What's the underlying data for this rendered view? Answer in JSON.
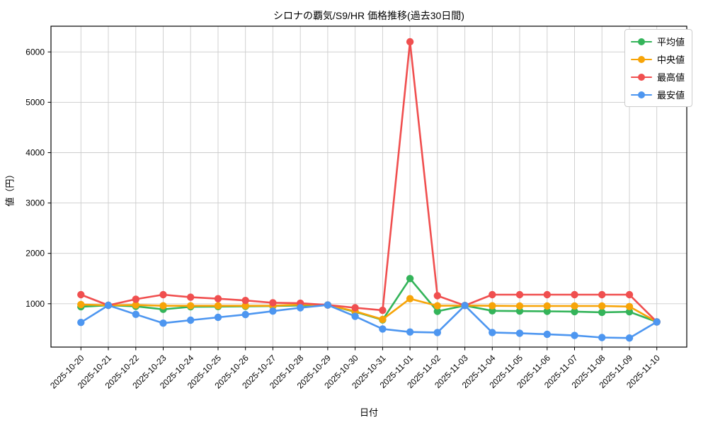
{
  "figure": {
    "background": "#ffffff",
    "grid_color": "#cccccc",
    "axis_color": "#000000"
  },
  "chart_data": {
    "type": "line",
    "title": "シロナの覇気/S9/HR 価格推移(過去30日間)",
    "xlabel": "日付",
    "ylabel": "値（円）",
    "grid": true,
    "legend_position": "upper right",
    "ylim": [
      140,
      6510
    ],
    "yticks": [
      1000,
      2000,
      3000,
      4000,
      5000,
      6000
    ],
    "categories": [
      "2025-10-20",
      "2025-10-21",
      "2025-10-22",
      "2025-10-23",
      "2025-10-24",
      "2025-10-25",
      "2025-10-26",
      "2025-10-27",
      "2025-10-28",
      "2025-10-29",
      "2025-10-30",
      "2025-10-31",
      "2025-11-01",
      "2025-11-02",
      "2025-11-03",
      "2025-11-04",
      "2025-11-05",
      "2025-11-06",
      "2025-11-07",
      "2025-11-08",
      "2025-11-09",
      "2025-11-10"
    ],
    "series": [
      {
        "key": "average",
        "name": "平均値",
        "color": "#34b45a",
        "values": [
          940,
          970,
          950,
          890,
          940,
          945,
          950,
          955,
          965,
          975,
          840,
          680,
          1500,
          850,
          965,
          860,
          855,
          850,
          845,
          830,
          840,
          640
        ]
      },
      {
        "key": "median",
        "name": "中央値",
        "color": "#f7a408",
        "values": [
          985,
          970,
          975,
          960,
          960,
          960,
          960,
          960,
          985,
          975,
          850,
          690,
          1100,
          960,
          965,
          960,
          955,
          955,
          955,
          955,
          945,
          640
        ]
      },
      {
        "key": "highest",
        "name": "最高値",
        "color": "#f04f4f",
        "values": [
          1180,
          970,
          1090,
          1180,
          1130,
          1100,
          1065,
          1020,
          1010,
          975,
          920,
          870,
          6200,
          1160,
          965,
          1180,
          1180,
          1180,
          1180,
          1180,
          1180,
          640
        ]
      },
      {
        "key": "lowest",
        "name": "最安値",
        "color": "#4d96f0",
        "values": [
          630,
          970,
          790,
          615,
          675,
          730,
          785,
          855,
          920,
          975,
          750,
          500,
          440,
          430,
          965,
          430,
          415,
          395,
          370,
          330,
          320,
          640
        ]
      }
    ]
  }
}
